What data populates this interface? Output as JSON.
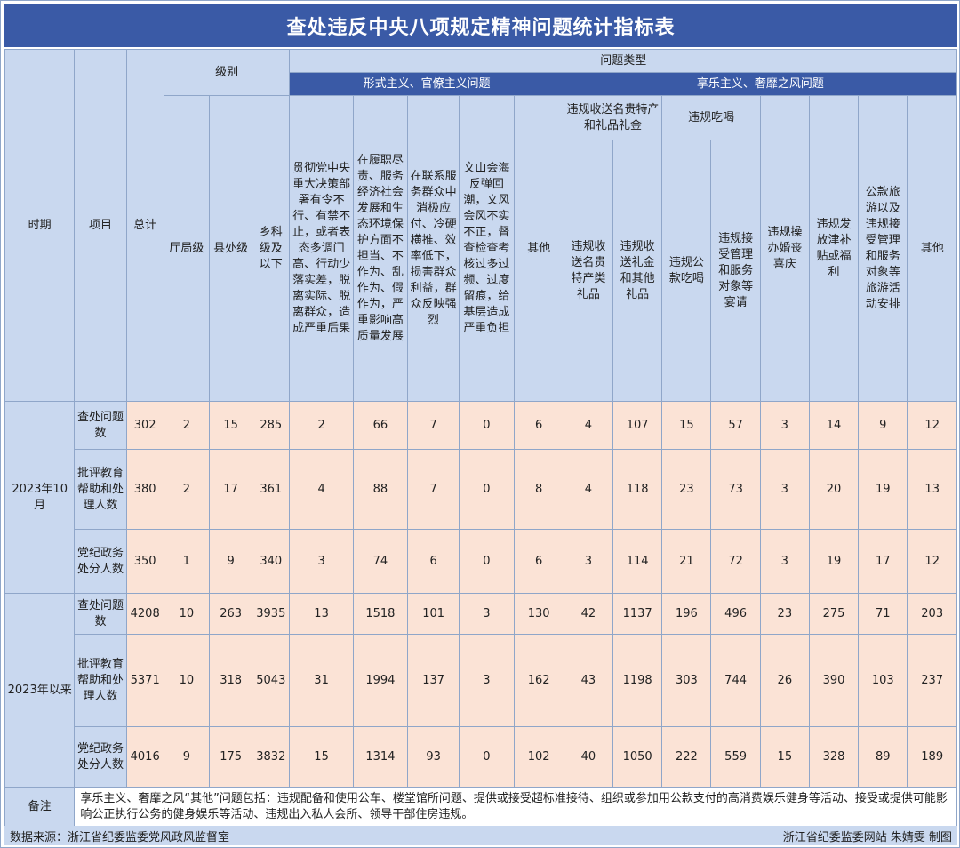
{
  "title": "查处违反中央八项规定精神问题统计指标表",
  "headers": {
    "period": "时期",
    "item": "项目",
    "total": "总计",
    "level": "级别",
    "level_cols": [
      "厅局级",
      "县处级",
      "乡科级及以下"
    ],
    "problem_type": "问题类型",
    "group1": "形式主义、官僚主义问题",
    "group2": "享乐主义、奢靡之风问题",
    "formalism_cols": [
      "贯彻党中央重大决策部署有令不行、有禁不止，或者表态多调门高、行动少落实差，脱离实际、脱离群众，造成严重后果",
      "在履职尽责、服务经济社会发展和生态环境保护方面不担当、不作为、乱作为、假作为，严重影响高质量发展",
      "在联系服务群众中消极应付、冷硬横推、效率低下，损害群众利益，群众反映强烈",
      "文山会海反弹回潮，文风会风不实不正，督查检查考核过多过频、过度留痕，给基层造成严重负担",
      "其他"
    ],
    "gifts_group": "违规收送名贵特产和礼品礼金",
    "gifts_cols": [
      "违规收送名贵特产类礼品",
      "违规收送礼金和其他礼品"
    ],
    "dining_group": "违规吃喝",
    "dining_cols": [
      "违规公款吃喝",
      "违规接受管理和服务对象等宴请"
    ],
    "hedonism_other_cols": [
      "违规操办婚丧喜庆",
      "违规发放津补贴或福利",
      "公款旅游以及违规接受管理和服务对象等旅游活动安排",
      "其他"
    ]
  },
  "periods": [
    {
      "label": "2023年10月",
      "rows": [
        {
          "item": "查处问题数",
          "values": [
            "302",
            "2",
            "15",
            "285",
            "2",
            "66",
            "7",
            "0",
            "6",
            "4",
            "107",
            "15",
            "57",
            "3",
            "14",
            "9",
            "12"
          ]
        },
        {
          "item": "批评教育帮助和处理人数",
          "values": [
            "380",
            "2",
            "17",
            "361",
            "4",
            "88",
            "7",
            "0",
            "8",
            "4",
            "118",
            "23",
            "73",
            "3",
            "20",
            "19",
            "13"
          ]
        },
        {
          "item": "党纪政务处分人数",
          "values": [
            "350",
            "1",
            "9",
            "340",
            "3",
            "74",
            "6",
            "0",
            "6",
            "3",
            "114",
            "21",
            "72",
            "3",
            "19",
            "17",
            "12"
          ]
        }
      ]
    },
    {
      "label": "2023年以来",
      "rows": [
        {
          "item": "查处问题数",
          "values": [
            "4208",
            "10",
            "263",
            "3935",
            "13",
            "1518",
            "101",
            "3",
            "130",
            "42",
            "1137",
            "196",
            "496",
            "23",
            "275",
            "71",
            "203"
          ]
        },
        {
          "item": "批评教育帮助和处理人数",
          "values": [
            "5371",
            "10",
            "318",
            "5043",
            "31",
            "1994",
            "137",
            "3",
            "162",
            "43",
            "1198",
            "303",
            "744",
            "26",
            "390",
            "103",
            "237"
          ]
        },
        {
          "item": "党纪政务处分人数",
          "values": [
            "4016",
            "9",
            "175",
            "3832",
            "15",
            "1314",
            "93",
            "0",
            "102",
            "40",
            "1050",
            "222",
            "559",
            "15",
            "328",
            "89",
            "189"
          ]
        }
      ]
    }
  ],
  "notes": {
    "label": "备注",
    "text": "享乐主义、奢靡之风“其他”问题包括：违规配备和使用公车、楼堂馆所问题、提供或接受超标准接待、组织或参加用公款支付的高消费娱乐健身等活动、接受或提供可能影响公正执行公务的健身娱乐等活动、违规出入私人会所、领导干部住房违规。"
  },
  "footer": {
    "source": "数据来源：浙江省纪委监委党风政风监督室",
    "credit": "浙江省纪委监委网站 朱婧雯 制图"
  },
  "colors": {
    "title_bg": "#3a5aa6",
    "header_bg": "#c9d8ef",
    "data_bg": "#fbe3d6",
    "border": "#8fa6c9"
  }
}
